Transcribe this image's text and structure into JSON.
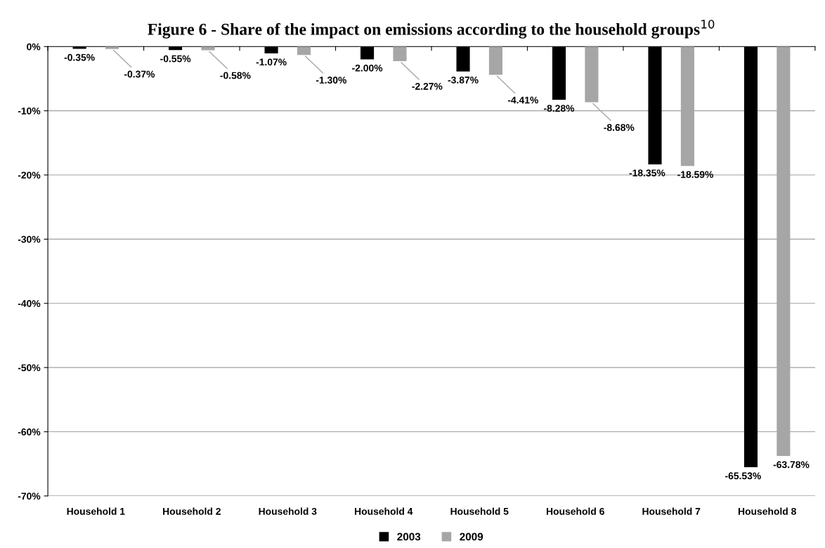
{
  "chart_data": {
    "type": "bar",
    "title": "Figure 6 - Share of the impact on emissions according to the household groups$^{10}$",
    "categories": [
      "Household 1",
      "Household 2",
      "Household 3",
      "Household 4",
      "Household 5",
      "Household 6",
      "Household 7",
      "Household 8"
    ],
    "series": [
      {
        "name": "2003",
        "color": "#000000",
        "values": [
          -0.35,
          -0.55,
          -1.07,
          -2.0,
          -3.87,
          -8.28,
          -18.35,
          -65.53
        ],
        "value_labels": [
          "-0.35%",
          "-0.55%",
          "-1.07%",
          "-2.00%",
          "-3.87%",
          "-8.28%",
          "-18.35%",
          "-65.53%"
        ]
      },
      {
        "name": "2009",
        "color": "#a6a6a6",
        "values": [
          -0.37,
          -0.58,
          -1.3,
          -2.27,
          -4.41,
          -8.68,
          -18.59,
          -63.78
        ],
        "value_labels": [
          "-0.37%",
          "-0.58%",
          "-1.30%",
          "-2.27%",
          "-4.41%",
          "-8.68%",
          "-18.59%",
          "-63.78%"
        ]
      }
    ],
    "ylim": [
      -70,
      0
    ],
    "yticks": [
      {
        "value": 0,
        "label": "0%"
      },
      {
        "value": -10,
        "label": "-10%"
      },
      {
        "value": -20,
        "label": "-20%"
      },
      {
        "value": -30,
        "label": "-30%"
      },
      {
        "value": -40,
        "label": "-40%"
      },
      {
        "value": -50,
        "label": "-50%"
      },
      {
        "value": -60,
        "label": "-60%"
      },
      {
        "value": -70,
        "label": "-70%"
      }
    ],
    "grid": "y",
    "legend": "bottom"
  }
}
